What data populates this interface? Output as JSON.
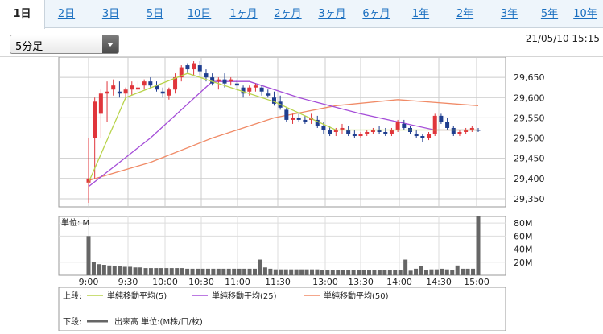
{
  "tabs": [
    "1日",
    "2日",
    "3日",
    "5日",
    "10日",
    "1ヶ月",
    "2ヶ月",
    "3ヶ月",
    "6ヶ月",
    "1年",
    "2年",
    "3年",
    "5年",
    "10年"
  ],
  "active_tab": "1日",
  "interval_select": {
    "value": "5分足"
  },
  "timestamp": "21/05/10 15:15",
  "colors": {
    "up": "#e0353b",
    "down": "#1f3e8f",
    "ma5": "#b8d34b",
    "ma25": "#a54ed8",
    "ma50": "#f08a66",
    "volume": "#666666"
  },
  "chart_data": [
    {
      "type": "candlestick",
      "x_ticks": [
        "9:00",
        "9:30",
        "10:00",
        "10:30",
        "11:00",
        "11:30",
        "13:00",
        "13:30",
        "14:00",
        "14:30",
        "15:00"
      ],
      "ylim": [
        29330,
        29700
      ],
      "y_ticks": [
        29350,
        29400,
        29450,
        29500,
        29550,
        29600,
        29650
      ],
      "y_tick_labels": [
        "29,350",
        "29,400",
        "29,450",
        "29,500",
        "29,550",
        "29,600",
        "29,650"
      ],
      "candles": [
        [
          29390,
          29500,
          29340,
          29400
        ],
        [
          29500,
          29600,
          29400,
          29590
        ],
        [
          29560,
          29620,
          29500,
          29610
        ],
        [
          29610,
          29640,
          29540,
          29615
        ],
        [
          29620,
          29645,
          29605,
          29630
        ],
        [
          29615,
          29640,
          29600,
          29610
        ],
        [
          29610,
          29625,
          29595,
          29620
        ],
        [
          29620,
          29640,
          29605,
          29630
        ],
        [
          29620,
          29640,
          29610,
          29625
        ],
        [
          29630,
          29645,
          29620,
          29640
        ],
        [
          29640,
          29650,
          29625,
          29630
        ],
        [
          29630,
          29640,
          29615,
          29620
        ],
        [
          29615,
          29625,
          29600,
          29610
        ],
        [
          29605,
          29625,
          29595,
          29620
        ],
        [
          29620,
          29660,
          29610,
          29650
        ],
        [
          29650,
          29680,
          29640,
          29675
        ],
        [
          29680,
          29685,
          29660,
          29670
        ],
        [
          29670,
          29690,
          29655,
          29685
        ],
        [
          29680,
          29690,
          29655,
          29665
        ],
        [
          29660,
          29670,
          29640,
          29650
        ],
        [
          29650,
          29660,
          29630,
          29635
        ],
        [
          29640,
          29650,
          29620,
          29645
        ],
        [
          29645,
          29660,
          29625,
          29635
        ],
        [
          29640,
          29650,
          29630,
          29645
        ],
        [
          29635,
          29645,
          29620,
          29630
        ],
        [
          29625,
          29630,
          29600,
          29610
        ],
        [
          29615,
          29630,
          29605,
          29625
        ],
        [
          29625,
          29635,
          29615,
          29630
        ],
        [
          29625,
          29630,
          29605,
          29615
        ],
        [
          29610,
          29620,
          29600,
          29605
        ],
        [
          29600,
          29615,
          29580,
          29585
        ],
        [
          29590,
          29605,
          29570,
          29575
        ],
        [
          29570,
          29575,
          29540,
          29545
        ],
        [
          29545,
          29560,
          29535,
          29550
        ],
        [
          29550,
          29560,
          29540,
          29545
        ],
        [
          29545,
          29555,
          29535,
          29540
        ],
        [
          29545,
          29560,
          29535,
          29550
        ],
        [
          29545,
          29555,
          29525,
          29530
        ],
        [
          29530,
          29540,
          29510,
          29520
        ],
        [
          29520,
          29530,
          29505,
          29510
        ],
        [
          29515,
          29525,
          29505,
          29520
        ],
        [
          29520,
          29535,
          29510,
          29525
        ],
        [
          29520,
          29530,
          29505,
          29510
        ],
        [
          29510,
          29520,
          29500,
          29505
        ],
        [
          29505,
          29515,
          29500,
          29510
        ],
        [
          29510,
          29520,
          29505,
          29515
        ],
        [
          29515,
          29525,
          29510,
          29520
        ],
        [
          29520,
          29530,
          29510,
          29515
        ],
        [
          29515,
          29525,
          29505,
          29510
        ],
        [
          29510,
          29525,
          29505,
          29520
        ],
        [
          29520,
          29545,
          29515,
          29540
        ],
        [
          29535,
          29545,
          29520,
          29525
        ],
        [
          29525,
          29530,
          29510,
          29515
        ],
        [
          29510,
          29520,
          29500,
          29505
        ],
        [
          29505,
          29510,
          29490,
          29500
        ],
        [
          29500,
          29515,
          29495,
          29510
        ],
        [
          29510,
          29560,
          29505,
          29555
        ],
        [
          29555,
          29560,
          29535,
          29540
        ],
        [
          29540,
          29550,
          29520,
          29525
        ],
        [
          29525,
          29530,
          29505,
          29510
        ],
        [
          29510,
          29520,
          29505,
          29515
        ],
        [
          29515,
          29525,
          29510,
          29520
        ],
        [
          29520,
          29530,
          29515,
          29525
        ],
        [
          29520,
          29525,
          29515,
          29518
        ]
      ],
      "ma5": [
        [
          0,
          29390
        ],
        [
          6,
          29600
        ],
        [
          16,
          29660
        ],
        [
          22,
          29630
        ],
        [
          30,
          29590
        ],
        [
          40,
          29520
        ],
        [
          50,
          29520
        ],
        [
          56,
          29520
        ],
        [
          63,
          29520
        ]
      ],
      "ma25": [
        [
          0,
          29380
        ],
        [
          10,
          29500
        ],
        [
          20,
          29640
        ],
        [
          26,
          29640
        ],
        [
          34,
          29600
        ],
        [
          44,
          29560
        ],
        [
          56,
          29520
        ],
        [
          63,
          29520
        ]
      ],
      "ma50": [
        [
          0,
          29395
        ],
        [
          10,
          29440
        ],
        [
          20,
          29500
        ],
        [
          30,
          29550
        ],
        [
          40,
          29580
        ],
        [
          50,
          29595
        ],
        [
          63,
          29580
        ]
      ]
    },
    {
      "type": "bar",
      "unit_label": "単位: M",
      "ylim": [
        0,
        90
      ],
      "y_ticks": [
        20,
        40,
        60,
        80
      ],
      "y_tick_labels": [
        "20M",
        "40M",
        "60M",
        "80M"
      ],
      "values": [
        60,
        20,
        17,
        16,
        15,
        14,
        14,
        13,
        13,
        12,
        12,
        11,
        11,
        11,
        11,
        11,
        11,
        11,
        11,
        10,
        10,
        10,
        10,
        10,
        10,
        10,
        10,
        10,
        10,
        10,
        10,
        10,
        10,
        24,
        12,
        10,
        9,
        9,
        9,
        9,
        9,
        9,
        9,
        9,
        9,
        8,
        8,
        8,
        8,
        8,
        8,
        8,
        8,
        8,
        8,
        8,
        8,
        8,
        8,
        8,
        8,
        24,
        7,
        10,
        14,
        8,
        9,
        9,
        10,
        9,
        8,
        15,
        10,
        10,
        10,
        90
      ]
    }
  ],
  "legend": {
    "upper_label": "上段:",
    "lower_label": "下段:",
    "items": [
      {
        "label": "単純移動平均(5)",
        "color": "#b8d34b"
      },
      {
        "label": "単純移動平均(25)",
        "color": "#a54ed8"
      },
      {
        "label": "単純移動平均(50)",
        "color": "#f08a66"
      }
    ],
    "volume_label": "出来高 単位:(M株/口/枚)"
  }
}
